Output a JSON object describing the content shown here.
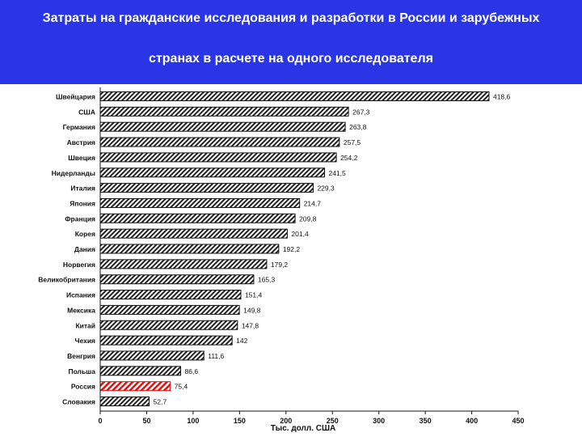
{
  "title": {
    "line1": "Затраты на гражданские исследования и разработки  в России и зарубежных",
    "line2": "странах в расчете на одного исследователя"
  },
  "colors": {
    "banner": "#2a35e8",
    "bar": "#222222",
    "highlight": "#e01010"
  },
  "chart_data": {
    "type": "bar",
    "orientation": "horizontal",
    "categories": [
      "Швейцария",
      "США",
      "Германия",
      "Австрия",
      "Швеция",
      "Нидерланды",
      "Италия",
      "Япония",
      "Франция",
      "Корея",
      "Дания",
      "Норвегия",
      "Великобритания",
      "Испания",
      "Мексика",
      "Китай",
      "Чехия",
      "Венгрия",
      "Польша",
      "Россия",
      "Словакия"
    ],
    "values": [
      418.6,
      267.3,
      263.8,
      257.5,
      254.2,
      241.5,
      229.3,
      214.7,
      209.8,
      201.4,
      192.2,
      179.2,
      165.3,
      151.4,
      149.8,
      147.8,
      142,
      111.6,
      86.6,
      75.4,
      52.7
    ],
    "value_labels": [
      "418,6",
      "267,3",
      "263,8",
      "257,5",
      "254,2",
      "241,5",
      "229,3",
      "214,7",
      "209,8",
      "201,4",
      "192,2",
      "179,2",
      "165,3",
      "151,4",
      "149,8",
      "147,8",
      "142",
      "111,6",
      "86,6",
      "75,4",
      "52,7"
    ],
    "highlighted": [
      "Россия"
    ],
    "xlabel": "Тыс. долл. США",
    "xlim": [
      0,
      450
    ],
    "xticks": [
      0,
      50,
      100,
      150,
      200,
      250,
      300,
      350,
      400,
      450
    ],
    "grid": false,
    "legend": "none"
  }
}
